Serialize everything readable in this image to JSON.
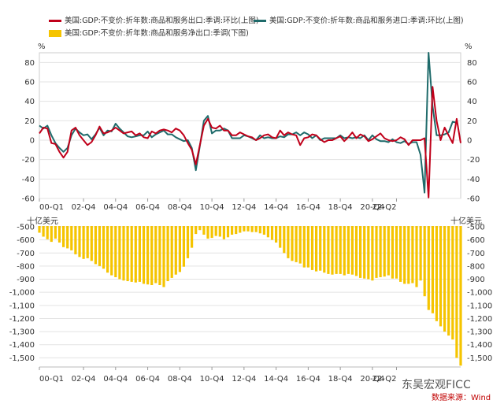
{
  "legend": {
    "export_label": "美国:GDP:不变价:折年数:商品和服务出口:季调:环比(上图)",
    "import_label": "美国:GDP:不变价:折年数:商品和服务进口:季调:环比(上图)",
    "net_label": "美国:GDP:不变价:折年数:商品和服务净出口:季调(下图)"
  },
  "units": {
    "top_left": "%",
    "top_right": "%",
    "bottom_left": "十亿美元",
    "bottom_right": "十亿美元"
  },
  "watermark": "东吴宏观FICC",
  "source": "数据来源：Wind",
  "colors": {
    "export": "#c0001a",
    "import": "#1f6b6b",
    "net": "#f5c400",
    "grid": "#e3e3e3",
    "axis_text": "#333333"
  },
  "chart_data": [
    {
      "type": "line",
      "title": "",
      "ylim": [
        -60,
        90
      ],
      "yticks": [
        -60,
        -40,
        -20,
        0,
        20,
        40,
        60,
        80
      ],
      "xticks": [
        "00-Q1",
        "02-Q4",
        "04-Q4",
        "06-Q4",
        "08-Q4",
        "10-Q4",
        "12-Q4",
        "14-Q4",
        "16-Q4",
        "18-Q4",
        "20-Q4",
        "22-Q2"
      ],
      "series": [
        {
          "name": "美国:GDP:不变价:折年数:商品和服务出口:季调:环比(上图)",
          "values": [
            7,
            13,
            12,
            -3,
            -4,
            -12,
            -18,
            -12,
            10,
            13,
            5,
            0,
            -5,
            -2,
            5,
            14,
            7,
            8,
            10,
            13,
            10,
            7,
            8,
            9,
            5,
            7,
            3,
            2,
            9,
            7,
            10,
            11,
            10,
            8,
            12,
            10,
            5,
            -3,
            -10,
            -25,
            -5,
            15,
            22,
            13,
            12,
            15,
            10,
            10,
            5,
            5,
            8,
            6,
            4,
            3,
            0,
            2,
            5,
            6,
            3,
            2,
            10,
            5,
            8,
            6,
            5,
            -5,
            2,
            3,
            6,
            5,
            1,
            -2,
            0,
            0,
            2,
            4,
            -1,
            3,
            8,
            2,
            6,
            4,
            -1,
            1,
            4,
            7,
            2,
            0,
            -1,
            0,
            3,
            1,
            -5,
            0,
            0,
            0,
            2,
            -59,
            55,
            20,
            0,
            13,
            5,
            -3,
            22,
            -3
          ]
        },
        {
          "name": "美国:GDP:不变价:折年数:商品和服务进口:季调:环比(上图)",
          "values": [
            15,
            12,
            15,
            5,
            -3,
            -8,
            -12,
            -8,
            5,
            12,
            8,
            5,
            6,
            1,
            6,
            13,
            5,
            10,
            9,
            17,
            12,
            8,
            4,
            3,
            4,
            5,
            5,
            9,
            3,
            6,
            8,
            10,
            6,
            6,
            3,
            1,
            -1,
            0,
            -8,
            -31,
            -6,
            20,
            25,
            7,
            10,
            10,
            12,
            10,
            2,
            2,
            2,
            5,
            4,
            2,
            0,
            5,
            2,
            3,
            2,
            2,
            4,
            3,
            6,
            6,
            8,
            5,
            8,
            6,
            2,
            5,
            0,
            2,
            2,
            2,
            2,
            5,
            2,
            3,
            2,
            3,
            2,
            5,
            0,
            5,
            1,
            -1,
            -1,
            -2,
            1,
            -2,
            -3,
            -1,
            -4,
            -2,
            -2,
            -15,
            -54,
            90,
            35,
            5,
            5,
            6,
            8,
            19,
            18
          ]
        }
      ]
    },
    {
      "type": "bar",
      "title": "",
      "ylim": [
        -1570,
        -500
      ],
      "yticks": [
        -500,
        -600,
        -700,
        -800,
        -900,
        -1000,
        -1100,
        -1200,
        -1300,
        -1400,
        -1500
      ],
      "ytick_labels": [
        "-500",
        "-600",
        "-700",
        "-800",
        "-900",
        "-1,000",
        "-1,100",
        "-1,200",
        "-1,300",
        "-1,400",
        "-1,500"
      ],
      "xticks": [
        "00-Q1",
        "02-Q4",
        "04-Q4",
        "06-Q4",
        "08-Q4",
        "10-Q4",
        "12-Q4",
        "14-Q4",
        "16-Q4",
        "18-Q4",
        "20-Q4",
        "22-Q2"
      ],
      "series": [
        {
          "name": "美国:GDP:不变价:折年数:商品和服务净出口:季调(下图)",
          "values": [
            -545,
            -575,
            -595,
            -615,
            -590,
            -620,
            -655,
            -665,
            -680,
            -710,
            -730,
            -745,
            -740,
            -760,
            -785,
            -800,
            -820,
            -850,
            -870,
            -885,
            -900,
            -910,
            -915,
            -920,
            -925,
            -920,
            -935,
            -940,
            -945,
            -930,
            -945,
            -960,
            -915,
            -890,
            -865,
            -845,
            -805,
            -740,
            -660,
            -555,
            -525,
            -560,
            -590,
            -585,
            -570,
            -575,
            -595,
            -580,
            -560,
            -555,
            -545,
            -535,
            -535,
            -540,
            -540,
            -550,
            -560,
            -580,
            -600,
            -620,
            -660,
            -700,
            -740,
            -760,
            -770,
            -780,
            -810,
            -810,
            -830,
            -840,
            -835,
            -850,
            -860,
            -865,
            -860,
            -860,
            -870,
            -860,
            -865,
            -875,
            -890,
            -895,
            -900,
            -910,
            -890,
            -885,
            -880,
            -870,
            -895,
            -895,
            -920,
            -935,
            -935,
            -930,
            -960,
            -910,
            -1030,
            -1135,
            -1160,
            -1220,
            -1260,
            -1300,
            -1330,
            -1360,
            -1500,
            -1560
          ]
        }
      ]
    }
  ]
}
